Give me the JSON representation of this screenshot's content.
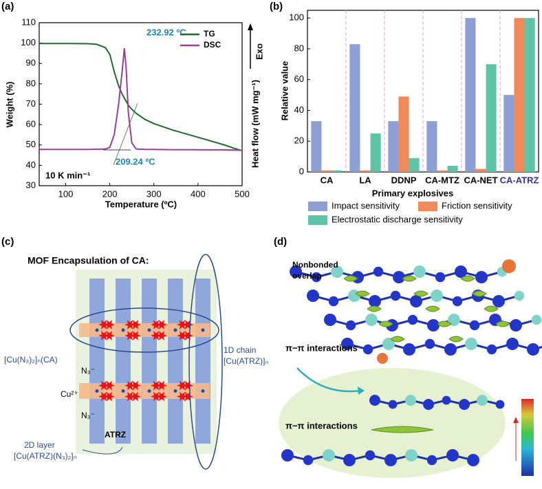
{
  "chart_data": [
    {
      "type": "line",
      "panel_label": "(a)",
      "x_label": "Temperature (ºC)",
      "y_label": "Weight (%)",
      "y2_label": "Heat flow (mW mg⁻¹)",
      "y2_arrow": "Exo",
      "annotations": [
        "232.92 ºC",
        "209.24 ºC",
        "10 K min⁻¹"
      ],
      "x": [
        40,
        100,
        150,
        170,
        190,
        200,
        210,
        220,
        228,
        233,
        237,
        242,
        250,
        260,
        280,
        300,
        340,
        380,
        420,
        460,
        480,
        500
      ],
      "series": [
        {
          "name": "TG",
          "color": "#1f6b2e",
          "values": [
            99.8,
            99.8,
            99.7,
            99.4,
            97.8,
            94.5,
            86,
            79,
            75,
            73,
            71.5,
            69.5,
            67.5,
            65.5,
            62.5,
            60.5,
            57.5,
            55,
            52.5,
            50,
            48.5,
            47.2
          ]
        },
        {
          "name": "DSC",
          "color": "#9b3c9b",
          "values": [
            47.8,
            47.8,
            47.8,
            47.9,
            48,
            48.8,
            55,
            70,
            86,
            97.5,
            88,
            66,
            51,
            48,
            47.8,
            47.8,
            47.7,
            47.7,
            47.6,
            47.6,
            47.5,
            47.4
          ]
        }
      ],
      "xlim": [
        40,
        500
      ],
      "xticks": [
        100,
        200,
        300,
        400,
        500
      ],
      "ylim": [
        30,
        110
      ],
      "yticks": [
        30,
        40,
        50,
        60,
        70,
        80,
        90,
        100,
        110
      ]
    },
    {
      "type": "bar",
      "panel_label": "(b)",
      "x_label": "Primary explosives",
      "y_label": "Relative value",
      "categories": [
        "CA",
        "LA",
        "DDNP",
        "CA-MTZ",
        "CA-NET",
        "CA-ATRZ"
      ],
      "highlight_index": 5,
      "highlight_color": "#2e3192",
      "series": [
        {
          "name": "Impact sensitivity",
          "color": "#8d9fd3",
          "values": [
            33,
            83,
            33,
            33,
            100,
            50
          ]
        },
        {
          "name": "Friction sensitivity",
          "color": "#f08a5d",
          "values": [
            1,
            1,
            49,
            1,
            2,
            100
          ]
        },
        {
          "name": "Electrostatic discharge sensitivity",
          "color": "#5fc3a7",
          "values": [
            1,
            25,
            9,
            4,
            70,
            100
          ]
        }
      ],
      "ylim": [
        0,
        105
      ],
      "yticks": [
        0,
        20,
        40,
        60,
        80,
        100
      ]
    }
  ],
  "panel_c": {
    "label": "(c)",
    "title": "MOF Encapsulation of CA:",
    "left_label": "[Cu(N₃)₂]ₙ(CA)",
    "n3_top": "N₃⁻",
    "cu": "Cu²⁺",
    "n3_bottom": "N₃⁻",
    "atrz": "ATRZ",
    "chain_label": [
      "1D chain",
      "[Cu(ATRZ)]ₙ"
    ],
    "layer_label": [
      "2D layer",
      "[Cu(ATRZ)(N₃)₂]ₙ"
    ]
  },
  "panel_d": {
    "label": "(d)",
    "overlap_label": [
      "Nonbonded",
      "overlap"
    ],
    "pi_label_top": "π−π interactions",
    "pi_label_bottom": "π−π interactions"
  }
}
